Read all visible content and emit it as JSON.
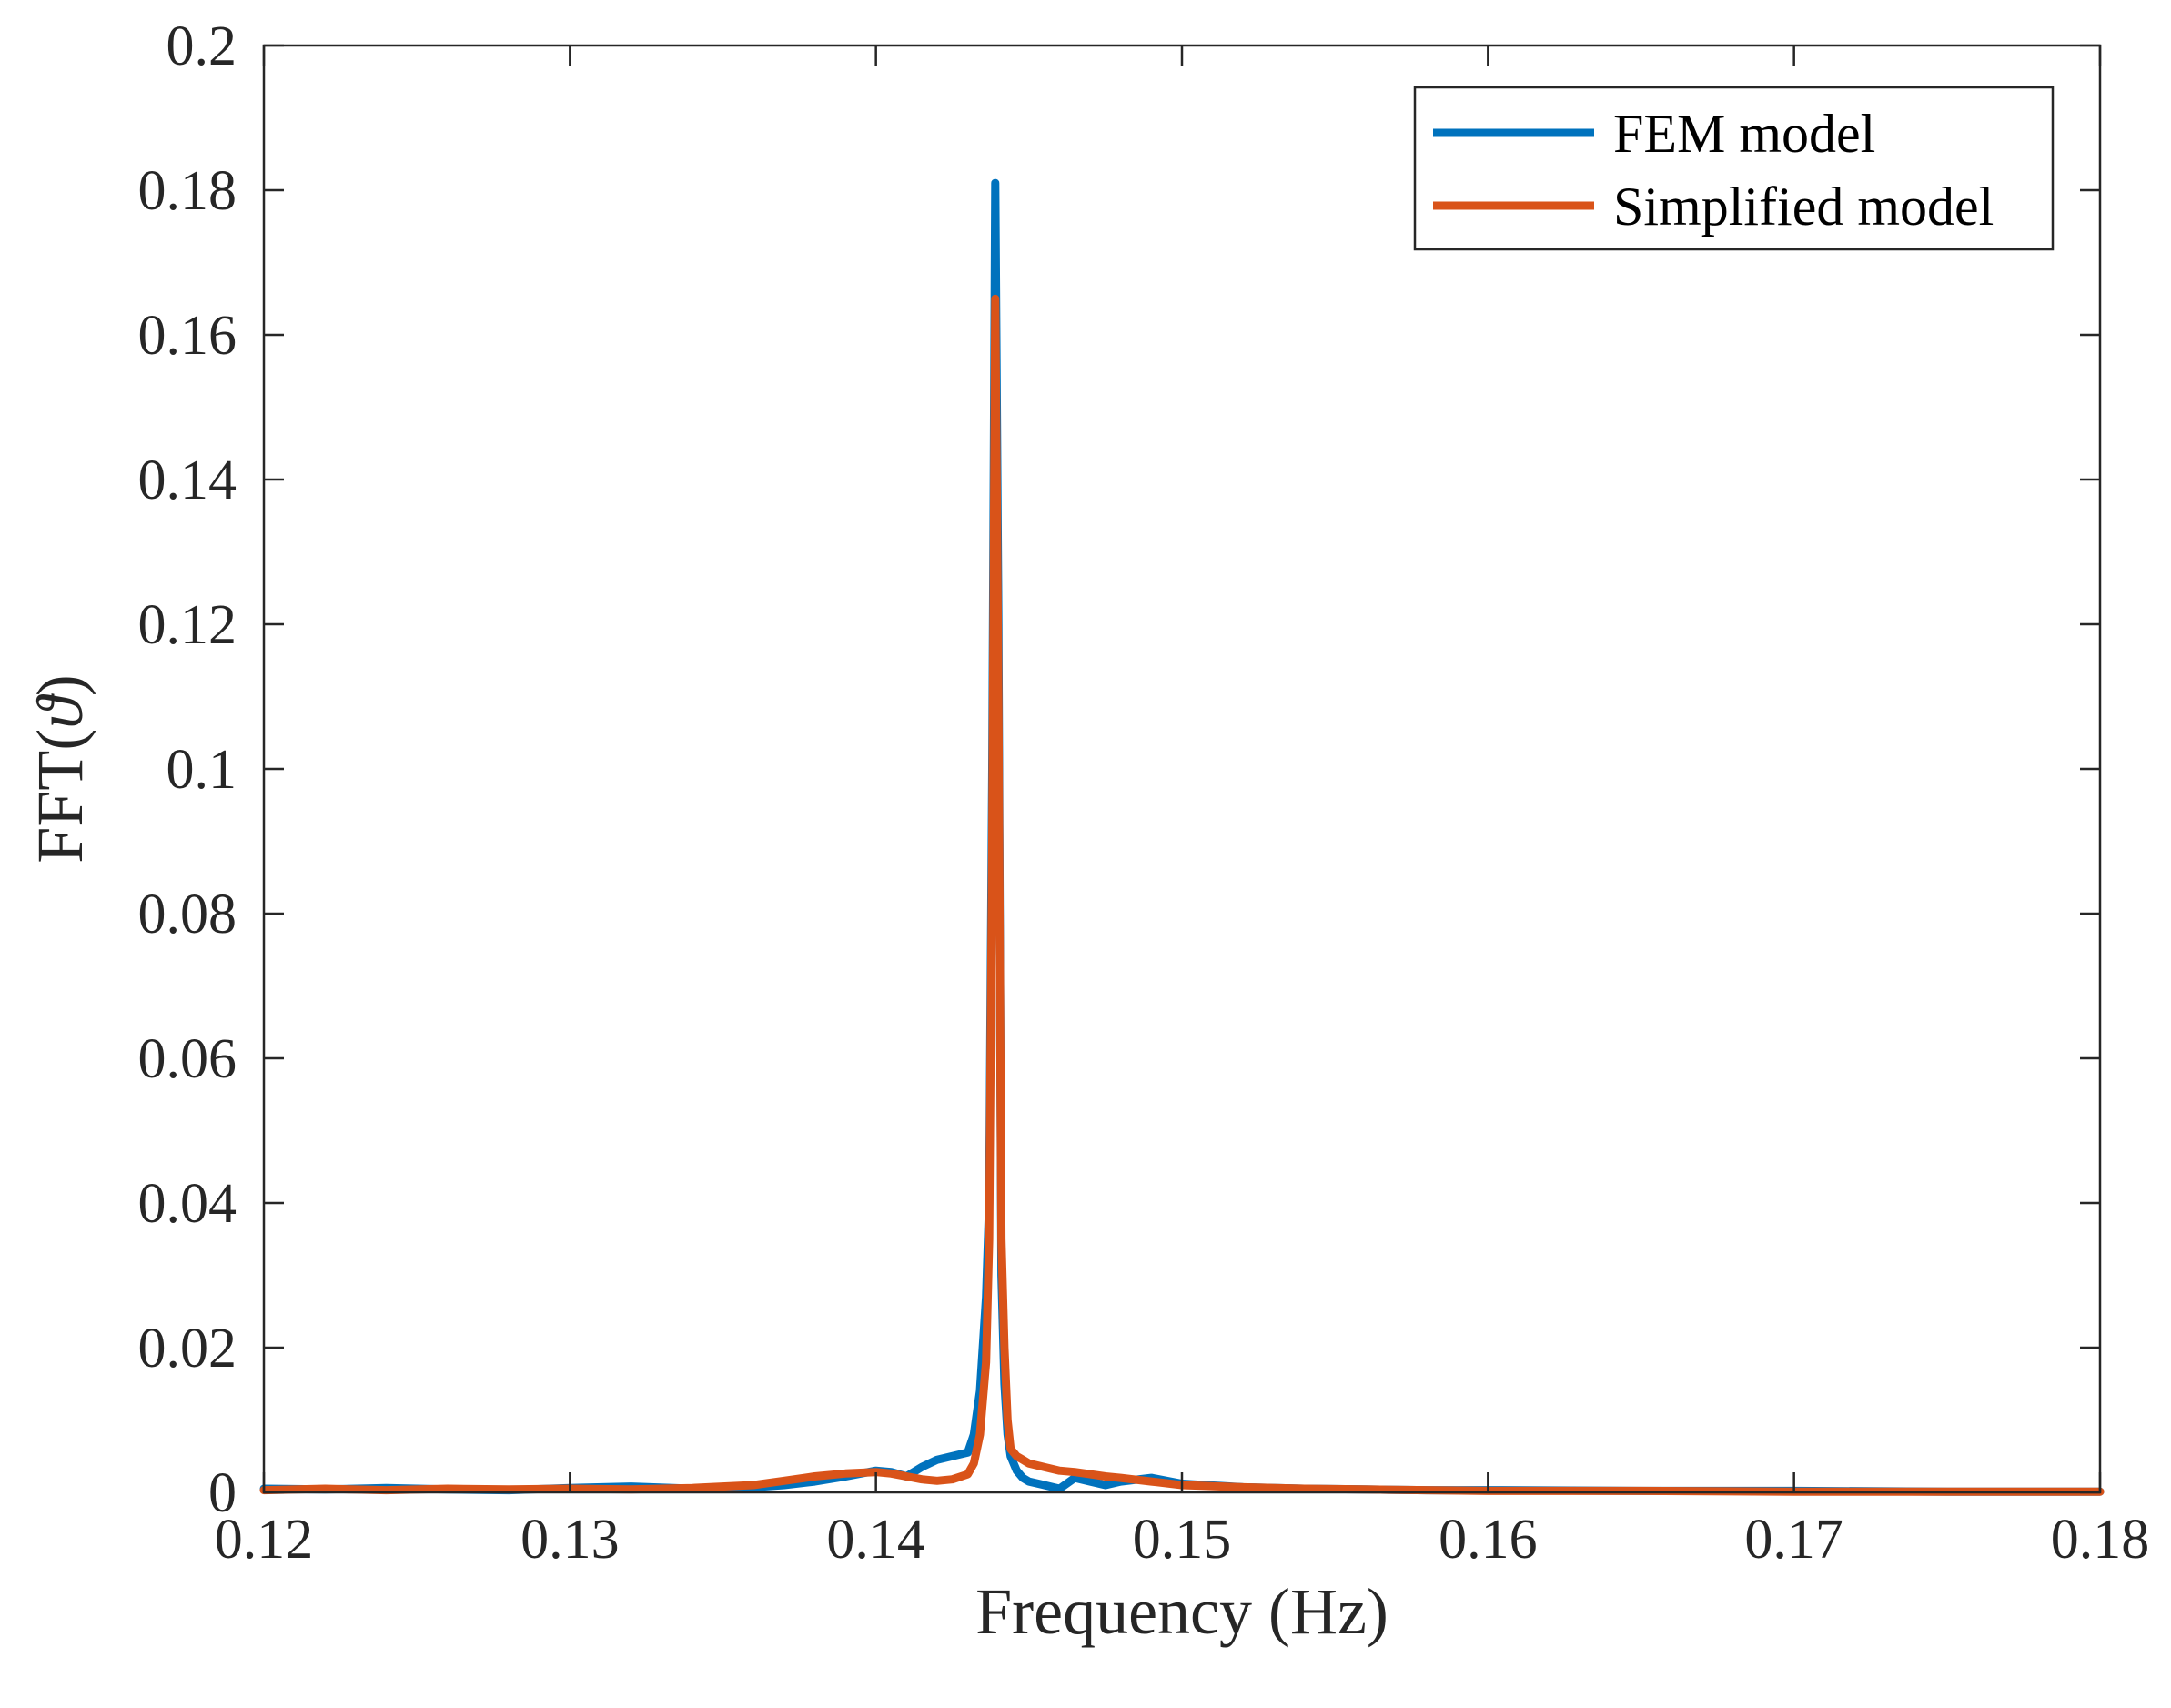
{
  "chart_data": {
    "type": "line",
    "title": "",
    "xlabel": "Frequency (Hz)",
    "ylabel_prefix": "FFT(",
    "ylabel_symbol": "ϑ",
    "ylabel_suffix": ")",
    "xlim": [
      0.12,
      0.18
    ],
    "ylim": [
      0,
      0.2
    ],
    "xticks": [
      0.12,
      0.13,
      0.14,
      0.15,
      0.16,
      0.17,
      0.18
    ],
    "xtick_labels": [
      "0.12",
      "0.13",
      "0.14",
      "0.15",
      "0.16",
      "0.17",
      "0.18"
    ],
    "yticks": [
      0,
      0.02,
      0.04,
      0.06,
      0.08,
      0.1,
      0.12,
      0.14,
      0.16,
      0.18,
      0.2
    ],
    "ytick_labels": [
      "0",
      "0.02",
      "0.04",
      "0.06",
      "0.08",
      "0.1",
      "0.12",
      "0.14",
      "0.16",
      "0.18",
      "0.2"
    ],
    "grid": false,
    "legend_position": "top-right",
    "series": [
      {
        "name": "FEM model",
        "color": "#0072BD",
        "x": [
          0.12,
          0.122,
          0.124,
          0.126,
          0.128,
          0.13,
          0.132,
          0.134,
          0.136,
          0.137,
          0.138,
          0.139,
          0.14,
          0.1405,
          0.141,
          0.1415,
          0.142,
          0.1425,
          0.143,
          0.1432,
          0.1434,
          0.1436,
          0.1437,
          0.1438,
          0.1439,
          0.144,
          0.1441,
          0.1442,
          0.1443,
          0.1444,
          0.1446,
          0.1448,
          0.145,
          0.1455,
          0.146,
          0.1465,
          0.147,
          0.1475,
          0.148,
          0.149,
          0.15,
          0.152,
          0.154,
          0.156,
          0.158,
          0.16,
          0.165,
          0.17,
          0.175,
          0.18
        ],
        "y": [
          0.0005,
          0.0004,
          0.0006,
          0.0004,
          0.0003,
          0.0006,
          0.0008,
          0.0005,
          0.0007,
          0.001,
          0.0015,
          0.0022,
          0.003,
          0.0028,
          0.0022,
          0.0035,
          0.0045,
          0.005,
          0.0055,
          0.008,
          0.014,
          0.027,
          0.04,
          0.1,
          0.181,
          0.12,
          0.03,
          0.015,
          0.008,
          0.005,
          0.003,
          0.002,
          0.0015,
          0.001,
          0.0005,
          0.002,
          0.0015,
          0.001,
          0.0015,
          0.002,
          0.0012,
          0.0007,
          0.0005,
          0.0004,
          0.0003,
          0.0003,
          0.0002,
          0.0002,
          0.0001,
          0.0001
        ]
      },
      {
        "name": "Simplified model",
        "color": "#D95319",
        "x": [
          0.12,
          0.122,
          0.124,
          0.126,
          0.128,
          0.13,
          0.132,
          0.134,
          0.136,
          0.137,
          0.138,
          0.139,
          0.14,
          0.1405,
          0.141,
          0.1415,
          0.142,
          0.1425,
          0.143,
          0.1432,
          0.1434,
          0.1436,
          0.1437,
          0.1438,
          0.1439,
          0.144,
          0.1441,
          0.1442,
          0.1443,
          0.1444,
          0.1446,
          0.1448,
          0.145,
          0.1455,
          0.146,
          0.1465,
          0.147,
          0.1475,
          0.148,
          0.149,
          0.15,
          0.152,
          0.154,
          0.156,
          0.158,
          0.16,
          0.165,
          0.17,
          0.175,
          0.18
        ],
        "y": [
          0.0003,
          0.0005,
          0.0003,
          0.0005,
          0.0004,
          0.0005,
          0.0004,
          0.0006,
          0.001,
          0.0016,
          0.0022,
          0.0026,
          0.0028,
          0.0026,
          0.0022,
          0.0018,
          0.0016,
          0.0018,
          0.0025,
          0.004,
          0.008,
          0.018,
          0.035,
          0.09,
          0.165,
          0.11,
          0.035,
          0.02,
          0.01,
          0.006,
          0.005,
          0.0045,
          0.004,
          0.0035,
          0.003,
          0.0028,
          0.0025,
          0.0022,
          0.002,
          0.0015,
          0.001,
          0.0007,
          0.0005,
          0.0004,
          0.0003,
          0.0002,
          0.0002,
          0.0001,
          0.0001,
          0.0001
        ]
      }
    ]
  }
}
